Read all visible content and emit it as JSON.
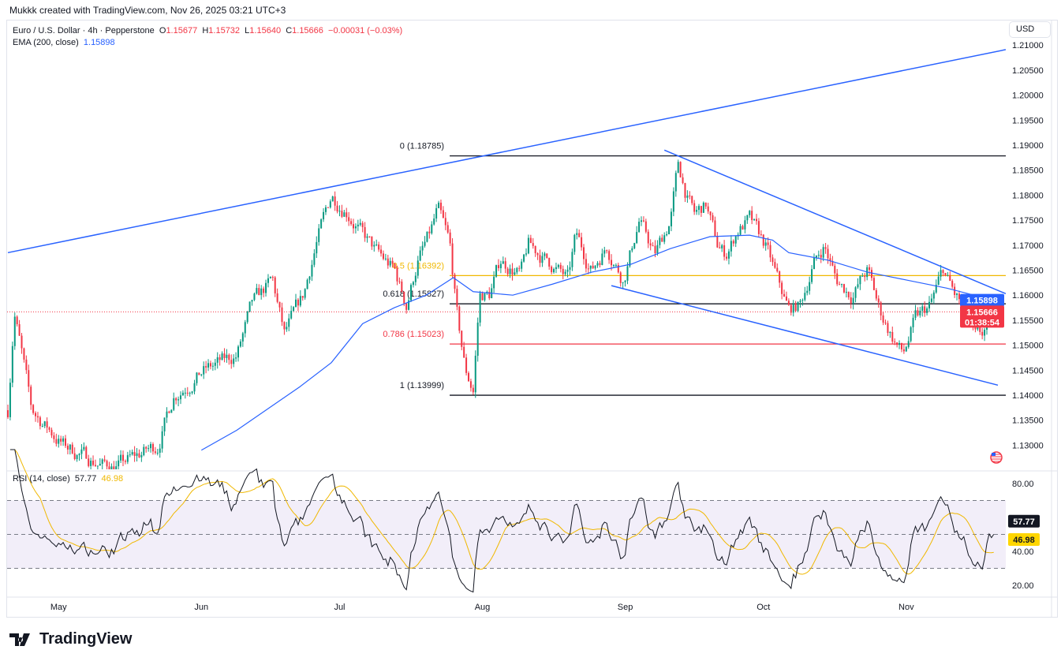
{
  "credit": "Mukkk created with TradingView.com, Nov 26, 2025 03:21 UTC+3",
  "legend": {
    "symbol": "Euro / U.S. Dollar · 4h · Pepperstone",
    "o_label": "O",
    "o": "1.15677",
    "h_label": "H",
    "h": "1.15732",
    "l_label": "L",
    "l": "1.15640",
    "c_label": "C",
    "c": "1.15666",
    "change": "−0.00031 (−0.03%)",
    "ema_label": "EMA (200, close)",
    "ema_value": "1.15898"
  },
  "rsi_legend": {
    "label": "RSI (14, close)",
    "value": "57.77",
    "ma": "46.98"
  },
  "currency_button": "USD",
  "logo_text": "TradingView",
  "colors": {
    "up": "#089981",
    "down": "#f23645",
    "ema": "#2962ff",
    "trend": "#2962ff",
    "fib0": "#131722",
    "fib05": "#f0b800",
    "fib0618": "#131722",
    "fib0786": "#f23645",
    "fib1": "#131722",
    "rsi": "#131722",
    "rsi_ma": "#f0b800",
    "rsi_band": "#7e57c2"
  },
  "chart_data": {
    "type": "candlestick",
    "x_unit": "days since Apr 20, 2025",
    "xlim": [
      0,
      216.6
    ],
    "ylim": [
      1.1245,
      1.2115
    ],
    "price_ticks": [
      "1.13000",
      "1.13500",
      "1.14000",
      "1.14500",
      "1.15000",
      "1.15500",
      "1.16000",
      "1.16500",
      "1.17000",
      "1.17500",
      "1.18000",
      "1.18500",
      "1.19000",
      "1.19500",
      "1.20000",
      "1.20500",
      "1.21000"
    ],
    "time_ticks": [
      {
        "label": "May",
        "day": 11
      },
      {
        "label": "Jun",
        "day": 42
      },
      {
        "label": "Jul",
        "day": 72
      },
      {
        "label": "Aug",
        "day": 103
      },
      {
        "label": "Sep",
        "day": 134
      },
      {
        "label": "Oct",
        "day": 164
      },
      {
        "label": "Nov",
        "day": 195
      }
    ],
    "close_path": [
      [
        0,
        1.137
      ],
      [
        1.4,
        1.157
      ],
      [
        5.1,
        1.137
      ],
      [
        12,
        1.13
      ],
      [
        20.5,
        1.126
      ],
      [
        24,
        1.126
      ],
      [
        32.5,
        1.13
      ],
      [
        36,
        1.14
      ],
      [
        42.8,
        1.145
      ],
      [
        49.7,
        1.148
      ],
      [
        53,
        1.158
      ],
      [
        57.4,
        1.163
      ],
      [
        60,
        1.152
      ],
      [
        64.2,
        1.16
      ],
      [
        66.8,
        1.17
      ],
      [
        70.2,
        1.18
      ],
      [
        73.6,
        1.177
      ],
      [
        77,
        1.172
      ],
      [
        80.5,
        1.168
      ],
      [
        83.9,
        1.165
      ],
      [
        86.5,
        1.158
      ],
      [
        89,
        1.167
      ],
      [
        91.6,
        1.172
      ],
      [
        93.3,
        1.177
      ],
      [
        95.9,
        1.17
      ],
      [
        97.6,
        1.155
      ],
      [
        99.3,
        1.145
      ],
      [
        101,
        1.141
      ],
      [
        102.4,
        1.16
      ],
      [
        104.5,
        1.16
      ],
      [
        107,
        1.167
      ],
      [
        111.3,
        1.164
      ],
      [
        113,
        1.17
      ],
      [
        118.2,
        1.166
      ],
      [
        121.6,
        1.163
      ],
      [
        123.3,
        1.172
      ],
      [
        126.7,
        1.165
      ],
      [
        130,
        1.17
      ],
      [
        133.6,
        1.163
      ],
      [
        137,
        1.175
      ],
      [
        140.4,
        1.168
      ],
      [
        143.8,
        1.175
      ],
      [
        145.5,
        1.186
      ],
      [
        147.3,
        1.18
      ],
      [
        149,
        1.176
      ],
      [
        151.5,
        1.178
      ],
      [
        154,
        1.17
      ],
      [
        155.8,
        1.168
      ],
      [
        158.4,
        1.173
      ],
      [
        161,
        1.175
      ],
      [
        164.4,
        1.17
      ],
      [
        167,
        1.163
      ],
      [
        169.5,
        1.157
      ],
      [
        172,
        1.158
      ],
      [
        174.7,
        1.166
      ],
      [
        177.2,
        1.17
      ],
      [
        179.8,
        1.163
      ],
      [
        183.2,
        1.16
      ],
      [
        186.6,
        1.165
      ],
      [
        189.2,
        1.157
      ],
      [
        191.8,
        1.152
      ],
      [
        194.3,
        1.148
      ],
      [
        197,
        1.155
      ],
      [
        200.3,
        1.158
      ],
      [
        203,
        1.165
      ],
      [
        205.5,
        1.16
      ],
      [
        208,
        1.157
      ],
      [
        209.8,
        1.151
      ],
      [
        211.5,
        1.152
      ],
      [
        213.2,
        1.155
      ],
      [
        214,
        1.15666
      ]
    ],
    "ema200": [
      [
        42,
        1.129
      ],
      [
        49.7,
        1.133
      ],
      [
        63.4,
        1.1417
      ],
      [
        70.2,
        1.1465
      ],
      [
        77,
        1.1543
      ],
      [
        83.9,
        1.1575
      ],
      [
        90.8,
        1.16
      ],
      [
        96.7,
        1.1635
      ],
      [
        101,
        1.1607
      ],
      [
        109.6,
        1.16
      ],
      [
        118.2,
        1.1622
      ],
      [
        126.7,
        1.1646
      ],
      [
        135.3,
        1.1662
      ],
      [
        143.8,
        1.1693
      ],
      [
        152.4,
        1.1717
      ],
      [
        161,
        1.172
      ],
      [
        166,
        1.171
      ],
      [
        169.5,
        1.1685
      ],
      [
        178,
        1.167
      ],
      [
        186.6,
        1.1646
      ],
      [
        195.2,
        1.163
      ],
      [
        203.8,
        1.1614
      ],
      [
        214,
        1.15898
      ]
    ],
    "trendlines": [
      {
        "name": "upper-trendline",
        "from": [
          0,
          1.1685
        ],
        "to": [
          216.6,
          1.2091
        ]
      },
      {
        "name": "falling-wedge-top",
        "from": [
          142.5,
          1.189
        ],
        "to": [
          216.6,
          1.1603
        ]
      },
      {
        "name": "falling-wedge-bottom",
        "from": [
          131,
          1.1619
        ],
        "to": [
          214.9,
          1.142
        ]
      }
    ],
    "fib_start_day": 95.9,
    "fib_levels": [
      {
        "label": "0 (1.18785)",
        "price": 1.18785,
        "color": "fib0"
      },
      {
        "label": "0.5 (1.16392)",
        "price": 1.16392,
        "color": "fib05"
      },
      {
        "label": "0.618 (1.15827)",
        "price": 1.15827,
        "color": "fib0618"
      },
      {
        "label": "0.786 (1.15023)",
        "price": 1.15023,
        "color": "fib0786"
      },
      {
        "label": "1 (1.13999)",
        "price": 1.13999,
        "color": "fib1"
      }
    ],
    "last_price": {
      "value": "1.15666",
      "countdown": "01:38:54",
      "price": 1.15666
    },
    "ema_tag": {
      "value": "1.15898",
      "price": 1.15898
    },
    "rsi": {
      "ticks": [
        "80.00",
        "40.00",
        "20.00"
      ],
      "band": [
        30,
        70
      ],
      "mid": 50,
      "last": 57.77,
      "ma_last": 46.98
    }
  }
}
